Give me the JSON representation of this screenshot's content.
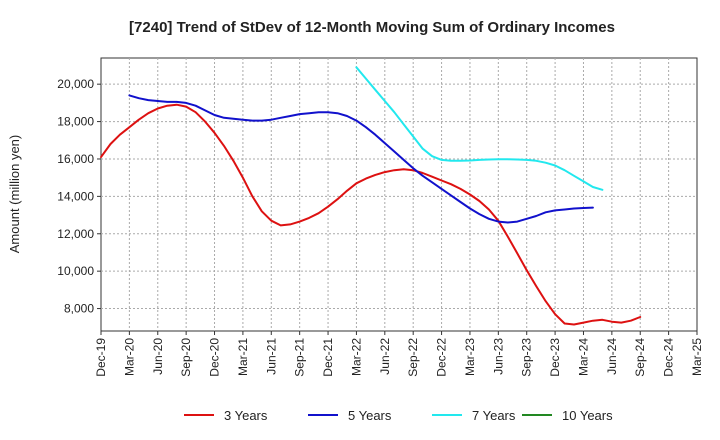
{
  "chart_data": {
    "type": "line",
    "title": "[7240]  Trend of StDev of 12-Month Moving Sum of Ordinary Incomes",
    "xlabel": "",
    "ylabel": "Amount (million yen)",
    "ylim": [
      6800,
      21400
    ],
    "yticks": [
      8000,
      10000,
      12000,
      14000,
      16000,
      18000,
      20000
    ],
    "ytick_labels": [
      "8,000",
      "10,000",
      "12,000",
      "14,000",
      "16,000",
      "18,000",
      "20,000"
    ],
    "x_tick_labels": [
      "Dec-19",
      "Mar-20",
      "Jun-20",
      "Sep-20",
      "Dec-20",
      "Mar-21",
      "Jun-21",
      "Sep-21",
      "Dec-21",
      "Mar-22",
      "Jun-22",
      "Sep-22",
      "Dec-22",
      "Mar-23",
      "Jun-23",
      "Sep-23",
      "Dec-23",
      "Mar-24",
      "Jun-24",
      "Sep-24",
      "Dec-24",
      "Mar-25"
    ],
    "grid": true,
    "legend_position": "bottom",
    "series": [
      {
        "name": "3 Years",
        "color": "#dd1111",
        "start_index": 0,
        "values": [
          16100,
          16800,
          17300,
          17700,
          18100,
          18450,
          18700,
          18850,
          18900,
          18800,
          18500,
          18000,
          17400,
          16700,
          15900,
          15000,
          14000,
          13200,
          12700,
          12450,
          12500,
          12650,
          12850,
          13100,
          13450,
          13850,
          14300,
          14700,
          14950,
          15150,
          15300,
          15400,
          15450,
          15400,
          15250,
          15050,
          14850,
          14650,
          14400,
          14100,
          13750,
          13300,
          12700,
          11850,
          10950,
          10050,
          9200,
          8400,
          7700,
          7200,
          7150,
          7250,
          7350,
          7400,
          7300,
          7250,
          7350,
          7550
        ]
      },
      {
        "name": "5 Years",
        "color": "#1111cc",
        "start_index": 3,
        "values": [
          19400,
          19250,
          19150,
          19100,
          19050,
          19050,
          19000,
          18850,
          18600,
          18350,
          18200,
          18150,
          18100,
          18050,
          18050,
          18100,
          18200,
          18300,
          18400,
          18450,
          18500,
          18500,
          18450,
          18300,
          18050,
          17700,
          17300,
          16850,
          16400,
          15950,
          15500,
          15100,
          14750,
          14400,
          14050,
          13700,
          13350,
          13050,
          12800,
          12650,
          12600,
          12650,
          12800,
          12950,
          13150,
          13250,
          13300,
          13350,
          13380,
          13400
        ]
      },
      {
        "name": "7 Years",
        "color": "#22e8ee",
        "start_index": 27,
        "values": [
          20900,
          20300,
          19700,
          19100,
          18500,
          17850,
          17200,
          16550,
          16150,
          15950,
          15900,
          15900,
          15920,
          15950,
          15970,
          15980,
          15980,
          15970,
          15950,
          15900,
          15800,
          15650,
          15400,
          15100,
          14800,
          14500,
          14350
        ]
      },
      {
        "name": "10 Years",
        "color": "#228822",
        "start_index": 0,
        "values": []
      }
    ]
  }
}
